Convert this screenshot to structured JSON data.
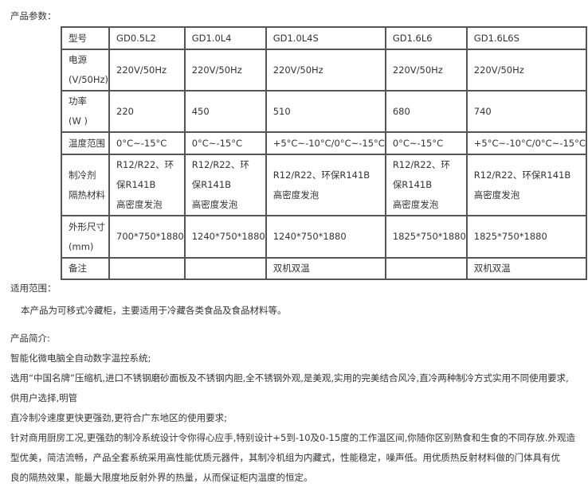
{
  "params_heading": "产品参数：",
  "table": {
    "rows": [
      {
        "label": [
          "型号"
        ],
        "cells": [
          [
            "GD0.5L2"
          ],
          [
            "GD1.0L4"
          ],
          [
            "GD1.0L4S"
          ],
          [
            "GD1.6L6"
          ],
          [
            "GD1.6L6S"
          ]
        ]
      },
      {
        "label": [
          "电源",
          "(V/50Hz)"
        ],
        "cells": [
          [
            "220V/50Hz"
          ],
          [
            "220V/50Hz"
          ],
          [
            "220V/50Hz"
          ],
          [
            "220V/50Hz"
          ],
          [
            "220V/50Hz"
          ]
        ]
      },
      {
        "label": [
          "功率",
          "(W )"
        ],
        "cells": [
          [
            "220"
          ],
          [
            "450"
          ],
          [
            "510"
          ],
          [
            "680"
          ],
          [
            "740"
          ]
        ]
      },
      {
        "label": [
          "温度范围"
        ],
        "cells": [
          [
            "0°C~-15°C"
          ],
          [
            "0°C~-15°C"
          ],
          [
            "+5°C~-10°C/0°C~-15°C"
          ],
          [
            "0°C~-15°C"
          ],
          [
            "+5°C~-10°C/0°C~-15°C"
          ]
        ]
      },
      {
        "label": [
          "制冷剂",
          "隔热材料"
        ],
        "cells": [
          [
            "R12/R22、环",
            "保R141B",
            "高密度发泡"
          ],
          [
            "R12/R22、环",
            "保R141B",
            "高密度发泡"
          ],
          [
            "R12/R22、环保R141B",
            "高密度发泡"
          ],
          [
            "R12/R22、环",
            "保R141B",
            "高密度发泡"
          ],
          [
            "R12/R22、环保R141B",
            "高密度发泡"
          ]
        ]
      },
      {
        "label": [
          "外形尺寸",
          "(mm)"
        ],
        "cells": [
          [
            "700*750*1880"
          ],
          [
            "1240*750*1880"
          ],
          [
            "1240*750*1880"
          ],
          [
            "1825*750*1880"
          ],
          [
            "1825*750*1880"
          ]
        ]
      },
      {
        "label": [
          "备注"
        ],
        "cells": [
          [
            ""
          ],
          [
            ""
          ],
          [
            "双机双温"
          ],
          [
            ""
          ],
          [
            "双机双温"
          ]
        ]
      }
    ]
  },
  "scope_heading": "适用范围：",
  "scope_text": "本产品为可移式冷藏柜，主要适用于冷藏各类食品及食品材料等。",
  "intro_heading": "产品简介:",
  "intro_lines": [
    "智能化微电脑全自动数字温控系统;",
    "选用“中国名牌”压缩机,进口不锈钢磨砂面板及不锈钢内胆,全不锈钢外观,是美观,实用的完美结合风冷,直冷两种制冷方式实用不同使用要求,",
    "供用户选择,明管",
    "直冷制冷速度更快更强劲,更符合广东地区的使用要求;",
    "针对商用厨房工况,更强劲的制冷系统设计令你得心应手,特别设计+5到-10及0-15度的工作温区间,你随你区别熟食和生食的不同存放.外观造",
    "型优美，简洁流畅，产品全套系统采用高性能优质元器件，其制冷机组为内藏式，性能稳定，噪声低。用优质热反射材料做的门体具有优",
    "良的隔热效果，能最大限度地反射外界的热量，从而保证柜内温度的恒定。"
  ]
}
